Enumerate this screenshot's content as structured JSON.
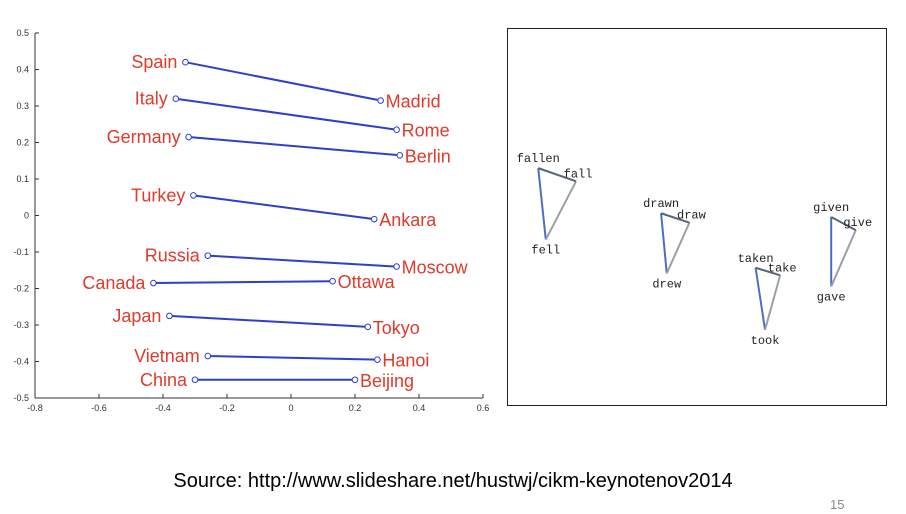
{
  "chart_data": [
    {
      "type": "scatter",
      "title": "",
      "xlabel": "",
      "ylabel": "",
      "xlim": [
        -0.8,
        0.6
      ],
      "ylim": [
        -0.5,
        0.5
      ],
      "xticks": [
        "-0.8",
        "-0.6",
        "-0.4",
        "-0.2",
        "0",
        "0.2",
        "0.4",
        "0.6"
      ],
      "yticks": [
        "0.5",
        "0.4",
        "0.3",
        "0.2",
        "0.1",
        "0",
        "-0.1",
        "-0.2",
        "-0.3",
        "-0.4",
        "-0.5"
      ],
      "grid": false,
      "label_color": "#e03a2b",
      "line_color": "#2d3fd1",
      "pairs": [
        {
          "country": "Spain",
          "country_xy": [
            -0.33,
            0.42
          ],
          "capital": "Madrid",
          "capital_xy": [
            0.28,
            0.315
          ]
        },
        {
          "country": "Italy",
          "country_xy": [
            -0.36,
            0.32
          ],
          "capital": "Rome",
          "capital_xy": [
            0.33,
            0.235
          ]
        },
        {
          "country": "Germany",
          "country_xy": [
            -0.32,
            0.215
          ],
          "capital": "Berlin",
          "capital_xy": [
            0.34,
            0.165
          ]
        },
        {
          "country": "Turkey",
          "country_xy": [
            -0.305,
            0.055
          ],
          "capital": "Ankara",
          "capital_xy": [
            0.26,
            -0.01
          ]
        },
        {
          "country": "Russia",
          "country_xy": [
            -0.26,
            -0.11
          ],
          "capital": "Moscow",
          "capital_xy": [
            0.33,
            -0.14
          ]
        },
        {
          "country": "Canada",
          "country_xy": [
            -0.43,
            -0.185
          ],
          "capital": "Ottawa",
          "capital_xy": [
            0.13,
            -0.18
          ]
        },
        {
          "country": "Japan",
          "country_xy": [
            -0.38,
            -0.275
          ],
          "capital": "Tokyo",
          "capital_xy": [
            0.24,
            -0.305
          ]
        },
        {
          "country": "Vietnam",
          "country_xy": [
            -0.26,
            -0.385
          ],
          "capital": "Hanoi",
          "capital_xy": [
            0.27,
            -0.395
          ]
        },
        {
          "country": "China",
          "country_xy": [
            -0.3,
            -0.45
          ],
          "capital": "Beijing",
          "capital_xy": [
            0.2,
            -0.45
          ]
        }
      ]
    },
    {
      "type": "scatter",
      "title": "",
      "xlim": [
        0,
        1
      ],
      "ylim": [
        0,
        1
      ],
      "grid": false,
      "edge_colors": [
        "#4a6fc4",
        "#9aa0a8",
        "#5a6478"
      ],
      "groups": [
        {
          "words": [
            "fallen",
            "fall",
            "fell"
          ],
          "points": [
            [
              0.08,
              0.63
            ],
            [
              0.18,
              0.595
            ],
            [
              0.1,
              0.44
            ]
          ]
        },
        {
          "words": [
            "drawn",
            "draw",
            "drew"
          ],
          "points": [
            [
              0.405,
              0.51
            ],
            [
              0.48,
              0.485
            ],
            [
              0.42,
              0.35
            ]
          ]
        },
        {
          "words": [
            "taken",
            "take",
            "took"
          ],
          "points": [
            [
              0.655,
              0.365
            ],
            [
              0.72,
              0.345
            ],
            [
              0.68,
              0.2
            ]
          ]
        },
        {
          "words": [
            "given",
            "give",
            "gave"
          ],
          "points": [
            [
              0.855,
              0.5
            ],
            [
              0.92,
              0.465
            ],
            [
              0.855,
              0.315
            ]
          ]
        }
      ]
    }
  ],
  "footer": {
    "source": "Source: http://www.slideshare.net/hustwj/cikm-keynotenov2014",
    "page_number": "15"
  }
}
